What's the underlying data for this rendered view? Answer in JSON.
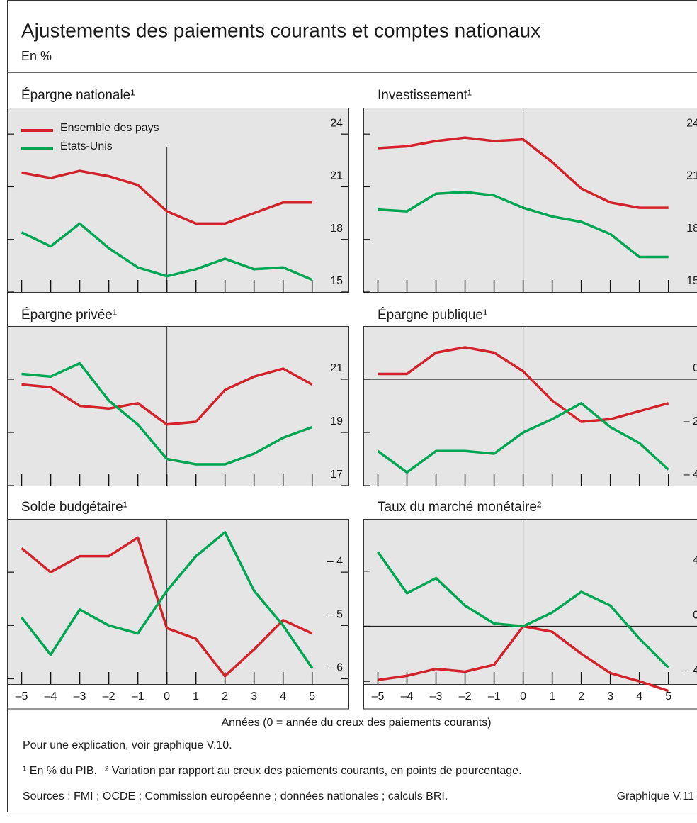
{
  "header": {
    "title": "Ajustements des paiements courants et comptes nationaux",
    "subtitle": "En %"
  },
  "chart_data": [
    {
      "type": "line",
      "title": "Épargne nationale¹",
      "x": [
        -5,
        -4,
        -3,
        -2,
        -1,
        0,
        1,
        2,
        3,
        4,
        5
      ],
      "xlim": [
        -5.5,
        6.25
      ],
      "xticks": [
        -5,
        -4,
        -3,
        -2,
        -1,
        0,
        1,
        2,
        3,
        4,
        5
      ],
      "ylim": [
        15,
        25.5
      ],
      "yticks": [
        15,
        18,
        21,
        24
      ],
      "legend": "upper left",
      "series": [
        {
          "name": "Ensemble des pays",
          "color": "#d2232a",
          "values": [
            21.8,
            21.5,
            21.9,
            21.6,
            21.1,
            19.6,
            18.9,
            18.9,
            19.5,
            20.1,
            20.1
          ]
        },
        {
          "name": "États-Unis",
          "color": "#00a651",
          "values": [
            18.4,
            17.6,
            18.9,
            17.5,
            16.4,
            15.9,
            16.3,
            16.9,
            16.3,
            16.4,
            15.7
          ]
        }
      ]
    },
    {
      "type": "line",
      "title": "Investissement¹",
      "x": [
        -5,
        -4,
        -3,
        -2,
        -1,
        0,
        1,
        2,
        3,
        4,
        5
      ],
      "xlim": [
        -5.5,
        6.25
      ],
      "xticks": [
        -5,
        -4,
        -3,
        -2,
        -1,
        0,
        1,
        2,
        3,
        4,
        5
      ],
      "ylim": [
        15,
        25.5
      ],
      "yticks": [
        15,
        18,
        21,
        24
      ],
      "series": [
        {
          "color": "#d2232a",
          "values": [
            23.2,
            23.3,
            23.6,
            23.8,
            23.6,
            23.7,
            22.4,
            20.9,
            20.1,
            19.8,
            19.8
          ]
        },
        {
          "color": "#00a651",
          "values": [
            19.7,
            19.6,
            20.6,
            20.7,
            20.5,
            19.8,
            19.3,
            19.0,
            18.3,
            17.0,
            17.0
          ]
        }
      ]
    },
    {
      "type": "line",
      "title": "Épargne privée¹",
      "x": [
        -5,
        -4,
        -3,
        -2,
        -1,
        0,
        1,
        2,
        3,
        4,
        5
      ],
      "xlim": [
        -5.5,
        6.25
      ],
      "xticks": [
        -5,
        -4,
        -3,
        -2,
        -1,
        0,
        1,
        2,
        3,
        4,
        5
      ],
      "ylim": [
        17,
        23
      ],
      "yticks": [
        17,
        19,
        21
      ],
      "series": [
        {
          "color": "#d2232a",
          "values": [
            20.8,
            20.7,
            20.0,
            19.9,
            20.1,
            19.3,
            19.4,
            20.6,
            21.1,
            21.4,
            20.8
          ]
        },
        {
          "color": "#00a651",
          "values": [
            21.2,
            21.1,
            21.6,
            20.2,
            19.3,
            18.0,
            17.8,
            17.8,
            18.2,
            18.8,
            19.2
          ]
        }
      ]
    },
    {
      "type": "line",
      "title": "Épargne publique¹",
      "x": [
        -5,
        -4,
        -3,
        -2,
        -1,
        0,
        1,
        2,
        3,
        4,
        5
      ],
      "xlim": [
        -5.5,
        6.25
      ],
      "xticks": [
        -5,
        -4,
        -3,
        -2,
        -1,
        0,
        1,
        2,
        3,
        4,
        5
      ],
      "ylim": [
        -4,
        2
      ],
      "yticks": [
        {
          "value": -4,
          "label": "– 4"
        },
        {
          "value": -2,
          "label": "– 2"
        },
        0
      ],
      "series": [
        {
          "color": "#d2232a",
          "values": [
            0.2,
            0.2,
            1.0,
            1.2,
            1.0,
            0.3,
            -0.8,
            -1.6,
            -1.5,
            -1.2,
            -0.9
          ]
        },
        {
          "color": "#00a651",
          "values": [
            -2.7,
            -3.5,
            -2.7,
            -2.7,
            -2.8,
            -2.0,
            -1.5,
            -0.9,
            -1.8,
            -2.4,
            -3.4
          ]
        }
      ]
    },
    {
      "type": "line",
      "title": "Solde budgétaire¹",
      "x": [
        -5,
        -4,
        -3,
        -2,
        -1,
        0,
        1,
        2,
        3,
        4,
        5
      ],
      "xlim": [
        -5.5,
        6.25
      ],
      "xticks": [
        {
          "value": -5,
          "label": "–5"
        },
        {
          "value": -4,
          "label": "–4"
        },
        {
          "value": -3,
          "label": "–3"
        },
        {
          "value": -2,
          "label": "–2"
        },
        {
          "value": -1,
          "label": "–1"
        },
        0,
        1,
        2,
        3,
        4,
        5
      ],
      "ylim": [
        -6.1,
        -3
      ],
      "yticks": [
        {
          "value": -6,
          "label": "– 6"
        },
        {
          "value": -5,
          "label": "– 5"
        },
        {
          "value": -4,
          "label": "– 4"
        }
      ],
      "series": [
        {
          "color": "#d2232a",
          "values": [
            -3.55,
            -4.0,
            -3.7,
            -3.7,
            -3.35,
            -5.05,
            -5.25,
            -5.95,
            -5.45,
            -4.9,
            -5.15
          ]
        },
        {
          "color": "#00a651",
          "values": [
            -4.85,
            -5.55,
            -4.7,
            -5.0,
            -5.15,
            -4.35,
            -3.7,
            -3.25,
            -4.35,
            -5.0,
            -5.8
          ]
        }
      ]
    },
    {
      "type": "line",
      "title": "Taux du marché monétaire²",
      "x": [
        -5,
        -4,
        -3,
        -2,
        -1,
        0,
        1,
        2,
        3,
        4,
        5
      ],
      "xlim": [
        -5.5,
        6.25
      ],
      "xticks": [
        {
          "value": -5,
          "label": "–5"
        },
        {
          "value": -4,
          "label": "–4"
        },
        {
          "value": -3,
          "label": "–3"
        },
        {
          "value": -2,
          "label": "–2"
        },
        {
          "value": -1,
          "label": "–1"
        },
        0,
        1,
        2,
        3,
        4,
        5
      ],
      "ylim": [
        -4.2,
        7.8
      ],
      "yticks": [
        {
          "value": -4,
          "label": "– 4"
        },
        0,
        4
      ],
      "series": [
        {
          "color": "#d2232a",
          "values": [
            -3.9,
            -3.6,
            -3.1,
            -3.3,
            -2.8,
            0,
            -0.4,
            -2.0,
            -3.4,
            -4.0,
            -4.7
          ]
        },
        {
          "color": "#00a651",
          "values": [
            5.4,
            2.4,
            3.5,
            1.5,
            0.2,
            0,
            1.0,
            2.5,
            1.5,
            -0.9,
            -3.0
          ]
        }
      ]
    }
  ],
  "x_label": "Années (0 = année du creux des paiements courants)",
  "note": "Pour une explication, voir graphique V.10.",
  "footnotes": [
    "¹ En % du PIB.",
    "² Variation par rapport au creux des paiements courants, en points de pourcentage."
  ],
  "sources": "Sources : FMI ; OCDE ; Commission européenne ; données nationales ; calculs BRI.",
  "chart_id": "Graphique V.11"
}
